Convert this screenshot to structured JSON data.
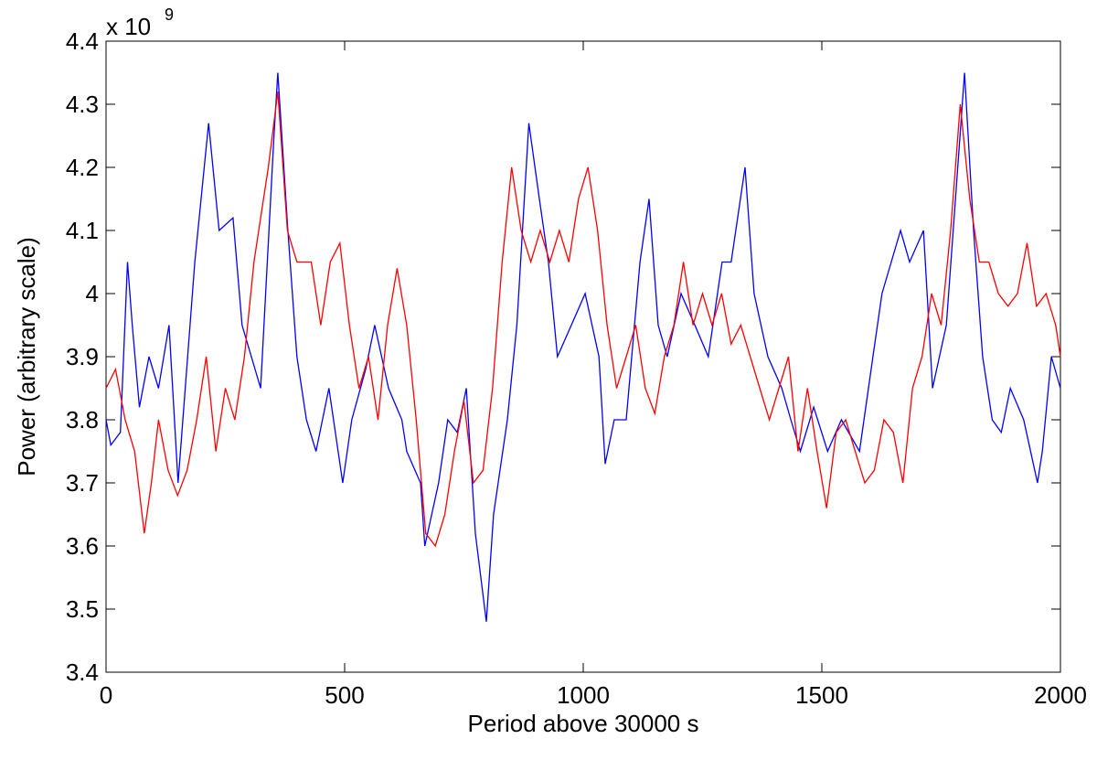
{
  "chart_data": {
    "type": "line",
    "xlabel": "Period above 30000 s",
    "ylabel": "Power (arbitrary scale)",
    "multiplier": {
      "base": "x 10",
      "exponent": "9"
    },
    "xlim": [
      0,
      2000
    ],
    "xticks": [
      0,
      500,
      1000,
      1500,
      2000
    ],
    "ylim": [
      3.4,
      4.4
    ],
    "yticks": [
      3.4,
      3.5,
      3.6,
      3.7,
      3.8,
      3.9,
      4,
      4.1,
      4.2,
      4.3,
      4.4
    ],
    "grid": false,
    "series": [
      {
        "color": "#0000ff",
        "x": [
          0,
          10,
          30,
          45,
          55,
          70,
          90,
          110,
          132,
          151,
          186,
          215,
          237,
          266,
          285,
          324,
          352,
          360,
          381,
          400,
          420,
          440,
          467,
          496,
          515,
          544,
          563,
          592,
          620,
          630,
          659,
          668,
          697,
          716,
          736,
          755,
          774,
          797,
          812,
          841,
          861,
          886,
          908,
          927,
          946,
          975,
          1004,
          1033,
          1046,
          1065,
          1090,
          1119,
          1138,
          1157,
          1176,
          1205,
          1234,
          1262,
          1291,
          1310,
          1339,
          1358,
          1387,
          1416,
          1435,
          1455,
          1483,
          1512,
          1541,
          1579,
          1607,
          1626,
          1665,
          1684,
          1713,
          1732,
          1761,
          1780,
          1799,
          1818,
          1837,
          1857,
          1876,
          1895,
          1923,
          1952,
          1962,
          1981,
          2000
        ],
        "values": [
          3.8,
          3.76,
          3.78,
          4.05,
          3.95,
          3.82,
          3.9,
          3.85,
          3.95,
          3.7,
          4.05,
          4.27,
          4.1,
          4.12,
          3.95,
          3.85,
          4.25,
          4.35,
          4.1,
          3.9,
          3.8,
          3.75,
          3.85,
          3.7,
          3.8,
          3.88,
          3.95,
          3.85,
          3.8,
          3.75,
          3.7,
          3.6,
          3.7,
          3.8,
          3.78,
          3.85,
          3.62,
          3.48,
          3.65,
          3.8,
          3.95,
          4.27,
          4.15,
          4.05,
          3.9,
          3.95,
          4.0,
          3.9,
          3.73,
          3.8,
          3.8,
          4.05,
          4.15,
          3.95,
          3.9,
          4.0,
          3.95,
          3.9,
          4.05,
          4.05,
          4.2,
          4.0,
          3.9,
          3.85,
          3.8,
          3.75,
          3.82,
          3.75,
          3.8,
          3.75,
          3.9,
          4.0,
          4.1,
          4.05,
          4.1,
          3.85,
          3.95,
          4.15,
          4.35,
          4.1,
          3.9,
          3.8,
          3.78,
          3.85,
          3.8,
          3.7,
          3.75,
          3.9,
          3.85
        ]
      },
      {
        "color": "#ff0000",
        "x": [
          0,
          20,
          40,
          60,
          80,
          95,
          110,
          130,
          150,
          170,
          190,
          210,
          230,
          250,
          270,
          290,
          310,
          340,
          360,
          380,
          400,
          430,
          450,
          470,
          490,
          510,
          530,
          550,
          570,
          590,
          610,
          630,
          650,
          670,
          690,
          710,
          730,
          750,
          770,
          790,
          810,
          830,
          850,
          870,
          890,
          910,
          930,
          950,
          970,
          990,
          1010,
          1030,
          1050,
          1070,
          1090,
          1110,
          1130,
          1150,
          1170,
          1190,
          1210,
          1230,
          1250,
          1270,
          1290,
          1310,
          1330,
          1350,
          1370,
          1390,
          1410,
          1430,
          1450,
          1470,
          1490,
          1510,
          1530,
          1550,
          1570,
          1590,
          1610,
          1630,
          1650,
          1670,
          1690,
          1710,
          1730,
          1750,
          1770,
          1790,
          1810,
          1830,
          1850,
          1870,
          1890,
          1910,
          1930,
          1950,
          1970,
          1990,
          2000
        ],
        "values": [
          3.85,
          3.88,
          3.8,
          3.75,
          3.62,
          3.7,
          3.8,
          3.72,
          3.68,
          3.72,
          3.8,
          3.9,
          3.75,
          3.85,
          3.8,
          3.9,
          4.05,
          4.2,
          4.32,
          4.1,
          4.05,
          4.05,
          3.95,
          4.05,
          4.08,
          3.95,
          3.85,
          3.9,
          3.8,
          3.95,
          4.04,
          3.95,
          3.8,
          3.62,
          3.6,
          3.65,
          3.75,
          3.83,
          3.7,
          3.72,
          3.85,
          4.05,
          4.2,
          4.1,
          4.05,
          4.1,
          4.05,
          4.1,
          4.05,
          4.15,
          4.2,
          4.1,
          3.95,
          3.85,
          3.9,
          3.95,
          3.85,
          3.81,
          3.9,
          3.95,
          4.05,
          3.95,
          4.0,
          3.95,
          4.0,
          3.92,
          3.95,
          3.9,
          3.85,
          3.8,
          3.85,
          3.9,
          3.75,
          3.85,
          3.75,
          3.66,
          3.78,
          3.8,
          3.75,
          3.7,
          3.72,
          3.8,
          3.78,
          3.7,
          3.85,
          3.9,
          4.0,
          3.95,
          4.1,
          4.3,
          4.15,
          4.05,
          4.05,
          4.0,
          3.98,
          4.0,
          4.08,
          3.98,
          4.0,
          3.95,
          3.9
        ]
      }
    ]
  }
}
